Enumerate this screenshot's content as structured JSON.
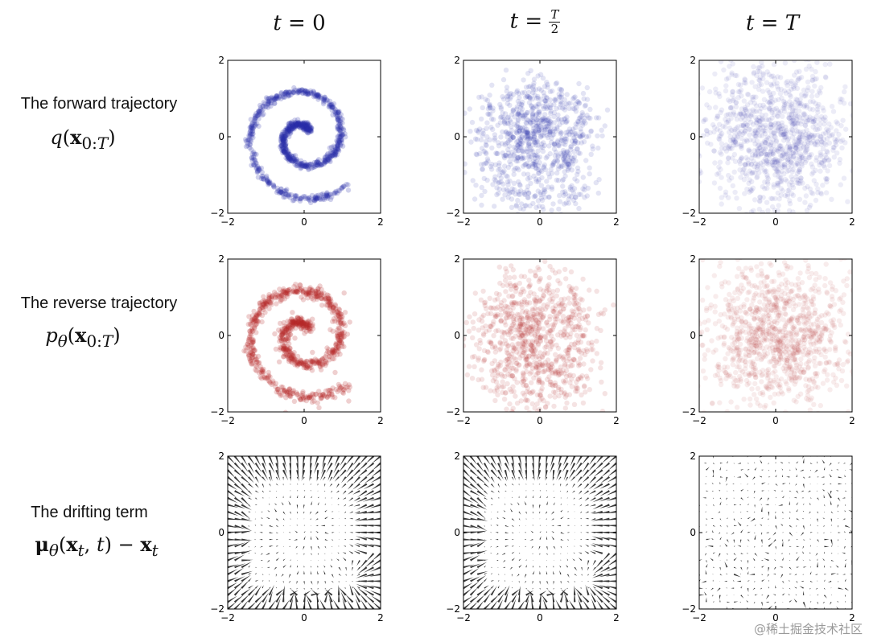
{
  "columns": [
    {
      "lhs": "t",
      "eq": "=",
      "rhs": "0"
    },
    {
      "lhs": "t",
      "eq": "=",
      "rhs_num": "T",
      "rhs_den": "2"
    },
    {
      "lhs": "t",
      "eq": "=",
      "rhs": "T"
    }
  ],
  "rows": [
    {
      "title": "The forward trajectory",
      "math_html": "<span class='it'>q</span>(<span class='bold'>x</span><sub>0:<span class='it'>T</span></sub>)"
    },
    {
      "title": "The reverse trajectory",
      "math_html": "<span class='it'>p</span><sub><span class='it'>θ</span></sub>(<span class='bold'>x</span><sub>0:<span class='it'>T</span></sub>)"
    },
    {
      "title": "The drifting term",
      "math_html": "<span class='bold'>μ</span><sub><span class='it'>θ</span></sub>(<span class='bold'>x</span><sub><span class='it'>t</span></sub>, <span class='it'>t</span>) − <span class='bold'>x</span><sub><span class='it'>t</span></sub>"
    }
  ],
  "watermark": "@稀土掘金技术社区",
  "colors": {
    "forward": "#2a2fa8",
    "reverse": "#b52a2a",
    "drift": "#222222",
    "axes": "#000000"
  },
  "chart_data": [
    {
      "type": "scatter",
      "title": "",
      "row": "forward",
      "time": "t=0",
      "description": "2-D swiss roll spiral, tight",
      "xlim": [
        -2,
        2
      ],
      "ylim": [
        -2,
        2
      ],
      "xticks": [
        "−2",
        "0",
        "2"
      ],
      "yticks": [
        "−2",
        "0",
        "2"
      ],
      "noise": 0.05
    },
    {
      "type": "scatter",
      "title": "",
      "row": "forward",
      "time": "t=T/2",
      "description": "swiss roll spiral, diffused",
      "xlim": [
        -2,
        2
      ],
      "ylim": [
        -2,
        2
      ],
      "xticks": [
        "−2",
        "0",
        "2"
      ],
      "yticks": [
        "−2",
        "0",
        "2"
      ],
      "noise": 0.3
    },
    {
      "type": "scatter",
      "title": "",
      "row": "forward",
      "time": "t=T",
      "description": "isotropic gaussian noise",
      "xlim": [
        -2,
        2
      ],
      "ylim": [
        -2,
        2
      ],
      "xticks": [
        "−2",
        "0",
        "2"
      ],
      "yticks": [
        "−2",
        "0",
        "2"
      ],
      "noise": 1.0
    },
    {
      "type": "scatter",
      "title": "",
      "row": "reverse",
      "time": "t=0",
      "description": "recovered swiss roll spiral",
      "xlim": [
        -2,
        2
      ],
      "ylim": [
        -2,
        2
      ],
      "xticks": [
        "−2",
        "0",
        "2"
      ],
      "yticks": [
        "−2",
        "0",
        "2"
      ],
      "noise": 0.07
    },
    {
      "type": "scatter",
      "title": "",
      "row": "reverse",
      "time": "t=T/2",
      "description": "partially denoised spiral",
      "xlim": [
        -2,
        2
      ],
      "ylim": [
        -2,
        2
      ],
      "xticks": [
        "−2",
        "0",
        "2"
      ],
      "yticks": [
        "−2",
        "0",
        "2"
      ],
      "noise": 0.35
    },
    {
      "type": "scatter",
      "title": "",
      "row": "reverse",
      "time": "t=T",
      "description": "gaussian noise",
      "xlim": [
        -2,
        2
      ],
      "ylim": [
        -2,
        2
      ],
      "xticks": [
        "−2",
        "0",
        "2"
      ],
      "yticks": [
        "−2",
        "0",
        "2"
      ],
      "noise": 0.85
    },
    {
      "type": "quiver",
      "title": "",
      "row": "drift",
      "time": "t=0",
      "description": "strong drift field toward spiral",
      "xlim": [
        -2,
        2
      ],
      "ylim": [
        -2,
        2
      ],
      "xticks": [
        "−2",
        "0",
        "2"
      ],
      "yticks": [
        "−2",
        "0",
        "2"
      ],
      "strength": 1.0
    },
    {
      "type": "quiver",
      "title": "",
      "row": "drift",
      "time": "t=T/2",
      "description": "strong drift field toward spiral",
      "xlim": [
        -2,
        2
      ],
      "ylim": [
        -2,
        2
      ],
      "xticks": [
        "−2",
        "0",
        "2"
      ],
      "yticks": [
        "−2",
        "0",
        "2"
      ],
      "strength": 0.95
    },
    {
      "type": "quiver",
      "title": "",
      "row": "drift",
      "time": "t=T",
      "description": "weak, nearly random drift field",
      "xlim": [
        -2,
        2
      ],
      "ylim": [
        -2,
        2
      ],
      "xticks": [
        "−2",
        "0",
        "2"
      ],
      "yticks": [
        "−2",
        "0",
        "2"
      ],
      "strength": 0.25
    }
  ]
}
